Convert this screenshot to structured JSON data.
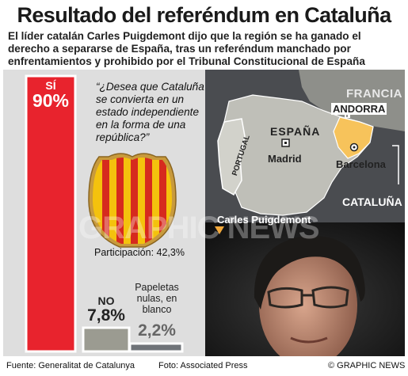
{
  "header": {
    "title": "Resultado del referéndum en Cataluña",
    "subtitle": "El líder catalán Carles Puigdemont dijo que la región se ha ganado el derecho a separarse de España, tras un referéndum manchado por enfrentamientos y prohibido por el Tribunal Constitucional de España"
  },
  "question": "“¿Desea que Cataluña se convierta en un estado independiente en la forma de una república?”",
  "participation": "Participación: 42,3%",
  "chart_data": {
    "type": "bar",
    "categories": [
      "SÍ",
      "NO",
      "Papeletas nulas, en blanco"
    ],
    "values": [
      90,
      7.8,
      2.2
    ],
    "value_labels": [
      "90%",
      "7,8%",
      "2,2%"
    ],
    "colors": [
      "#e8232d",
      "#9b9b91",
      "#6f7378"
    ]
  },
  "map": {
    "labels": {
      "francia": "FRANCIA",
      "andorra": "ANDORRA",
      "espana": "ESPAÑA",
      "portugal": "PORTUGAL",
      "madrid": "Madrid",
      "barcelona": "Barcelona",
      "cataluna": "CATALUÑA"
    }
  },
  "photo": {
    "caption": "Carles Puigdemont"
  },
  "watermark": "GRAPHIC NEWS",
  "footer": {
    "source": "Fuente: Generalitat de Catalunya",
    "photo_credit": "Foto: Associated Press",
    "copyright": "© GRAPHIC NEWS"
  }
}
